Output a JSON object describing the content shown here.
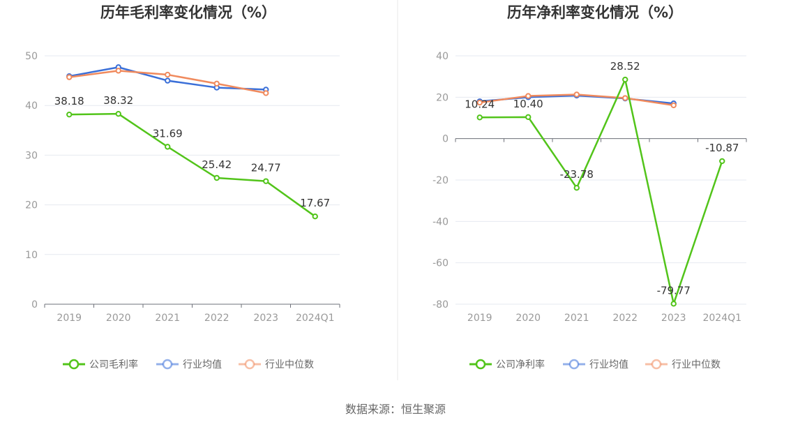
{
  "chart_data": [
    {
      "type": "line",
      "title": "历年毛利率变化情况（%）",
      "categories": [
        "2019",
        "2020",
        "2021",
        "2022",
        "2023",
        "2024Q1"
      ],
      "ylim": [
        0,
        50
      ],
      "yticks": [
        "0",
        "10",
        "20",
        "30",
        "40",
        "50"
      ],
      "grid": true,
      "legend_position": "bottom",
      "series": [
        {
          "name": "公司毛利率",
          "color": "#52c41a",
          "values": [
            38.18,
            38.32,
            31.69,
            25.42,
            24.77,
            17.67
          ],
          "labels": [
            "38.18",
            "38.32",
            "31.69",
            "25.42",
            "24.77",
            "17.67"
          ]
        },
        {
          "name": "行业均值",
          "color": "#3a6fd8",
          "values": [
            45.9,
            47.7,
            45.0,
            43.6,
            43.2,
            null
          ]
        },
        {
          "name": "行业中位数",
          "color": "#f08a5d",
          "values": [
            45.7,
            47.0,
            46.2,
            44.4,
            42.5,
            null
          ]
        }
      ]
    },
    {
      "type": "line",
      "title": "历年净利率变化情况（%）",
      "categories": [
        "2019",
        "2020",
        "2021",
        "2022",
        "2023",
        "2024Q1"
      ],
      "ylim": [
        -80,
        40
      ],
      "yticks": [
        "-80",
        "-60",
        "-40",
        "-20",
        "0",
        "20",
        "40"
      ],
      "grid": true,
      "legend_position": "bottom",
      "series": [
        {
          "name": "公司净利率",
          "color": "#52c41a",
          "values": [
            10.24,
            10.4,
            -23.78,
            28.52,
            -79.77,
            -10.87
          ],
          "labels": [
            "10.24",
            "10.40",
            "-23.78",
            "28.52",
            "-79.77",
            "-10.87"
          ]
        },
        {
          "name": "行业均值",
          "color": "#3a6fd8",
          "values": [
            18.0,
            20.0,
            20.8,
            19.4,
            17.0,
            null
          ]
        },
        {
          "name": "行业中位数",
          "color": "#f08a5d",
          "values": [
            17.4,
            20.6,
            21.3,
            19.6,
            16.1,
            null
          ]
        }
      ]
    }
  ],
  "footer": {
    "source": "数据来源：恒生聚源"
  }
}
